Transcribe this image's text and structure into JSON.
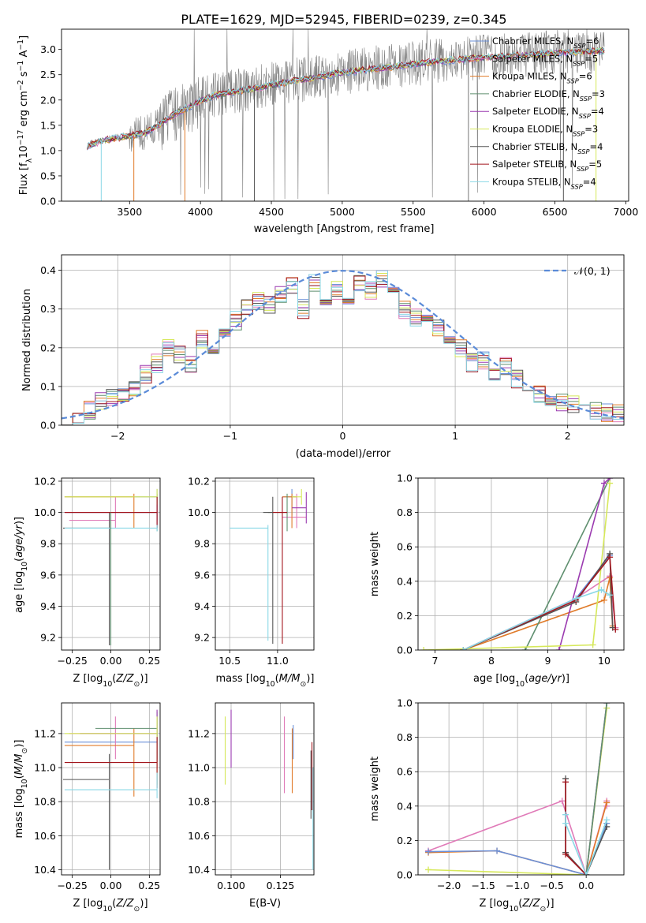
{
  "figure_title": "PLATE=1629, MJD=52945, FIBERID=0239, z=0.345",
  "colors": {
    "Chabrier MILES": "#6a8fd8",
    "Salpeter MILES": "#e07ab8",
    "Kroupa MILES": "#e07b2a",
    "Chabrier ELODIE": "#5f8f6f",
    "Salpeter ELODIE": "#9b3bb0",
    "Kroupa ELODIE": "#d6e85a",
    "Chabrier STELIB": "#555555",
    "Salpeter STELIB": "#a3161e",
    "Kroupa STELIB": "#8ad8e6",
    "gaussian": "#5b8bd8",
    "observed": "#808080"
  },
  "chart_data": [
    {
      "type": "line",
      "title": "PLATE=1629, MJD=52945, FIBERID=0239, z=0.345",
      "xlabel": "wavelength [Angstrom, rest frame]",
      "ylabel": "Flux [f_λ 10^-17 erg cm^-2 s^-1 A^-1]",
      "xlim": [
        3020,
        7020
      ],
      "ylim": [
        0,
        3.4
      ],
      "xticks": [
        3500,
        4000,
        4500,
        5000,
        5500,
        6000,
        6500,
        7000
      ],
      "yticks": [
        0.0,
        0.5,
        1.0,
        1.5,
        2.0,
        2.5,
        3.0
      ],
      "legend_position": "top-right",
      "legend": [
        {
          "name": "Chabrier MILES",
          "label": "Chabrier MILES, N",
          "sub": "SSP",
          "suffix": "=6"
        },
        {
          "name": "Salpeter MILES",
          "label": "Salpeter MILES, N",
          "sub": "SSP",
          "suffix": "=5"
        },
        {
          "name": "Kroupa MILES",
          "label": "Kroupa MILES, N",
          "sub": "SSP",
          "suffix": "=6"
        },
        {
          "name": "Chabrier ELODIE",
          "label": "Chabrier ELODIE, N",
          "sub": "SSP",
          "suffix": "=3"
        },
        {
          "name": "Salpeter ELODIE",
          "label": "Salpeter ELODIE, N",
          "sub": "SSP",
          "suffix": "=4"
        },
        {
          "name": "Kroupa ELODIE",
          "label": "Kroupa ELODIE, N",
          "sub": "SSP",
          "suffix": "=3"
        },
        {
          "name": "Chabrier STELIB",
          "label": "Chabrier STELIB, N",
          "sub": "SSP",
          "suffix": "=4"
        },
        {
          "name": "Salpeter STELIB",
          "label": "Salpeter STELIB, N",
          "sub": "SSP",
          "suffix": "=5"
        },
        {
          "name": "Kroupa STELIB",
          "label": "Kroupa STELIB, N",
          "sub": "SSP",
          "suffix": "=4"
        }
      ],
      "continuum": {
        "x": [
          3200,
          3300,
          3400,
          3500,
          3600,
          3700,
          3800,
          3900,
          4000,
          4100,
          4200,
          4300,
          4400,
          4500,
          4600,
          4700,
          4800,
          4900,
          5000,
          5200,
          5400,
          5600,
          5800,
          6000,
          6200,
          6400,
          6600,
          6800
        ],
        "y": [
          1.1,
          1.2,
          1.25,
          1.3,
          1.35,
          1.5,
          1.7,
          1.85,
          2.0,
          2.1,
          2.15,
          2.2,
          2.25,
          2.3,
          2.35,
          2.4,
          2.45,
          2.5,
          2.55,
          2.62,
          2.68,
          2.75,
          2.8,
          2.85,
          2.88,
          2.92,
          2.95,
          2.98
        ]
      },
      "observed_range": [
        3200,
        6850
      ]
    },
    {
      "type": "step",
      "xlabel": "(data-model)/error",
      "ylabel": "Normed distribution",
      "xlim": [
        -2.5,
        2.5
      ],
      "ylim": [
        0,
        0.44
      ],
      "xticks": [
        -2,
        -1,
        0,
        1,
        2
      ],
      "yticks": [
        0.0,
        0.1,
        0.2,
        0.3,
        0.4
      ],
      "legend": "𝒩(0, 1)",
      "bin_edges_start": -2.5,
      "bin_width": 0.1,
      "base_histogram": [
        0.025,
        0.03,
        0.04,
        0.06,
        0.07,
        0.085,
        0.1,
        0.13,
        0.16,
        0.2,
        0.18,
        0.16,
        0.22,
        0.2,
        0.24,
        0.27,
        0.3,
        0.32,
        0.31,
        0.34,
        0.36,
        0.3,
        0.37,
        0.33,
        0.35,
        0.33,
        0.37,
        0.35,
        0.38,
        0.36,
        0.3,
        0.28,
        0.26,
        0.25,
        0.21,
        0.2,
        0.16,
        0.17,
        0.14,
        0.15,
        0.12,
        0.1,
        0.08,
        0.07,
        0.06,
        0.055,
        0.05,
        0.04,
        0.03,
        0.03
      ]
    },
    {
      "type": "errorbar",
      "xlabel": "Z [log10(Z/Z☉)]",
      "ylabel": "age  [log10(age/yr)]",
      "xlim": [
        -0.32,
        0.32
      ],
      "ylim": [
        9.12,
        10.22
      ],
      "xticks": [
        -0.25,
        0.0,
        0.25
      ],
      "yticks": [
        9.2,
        9.4,
        9.6,
        9.8,
        10.0,
        10.2
      ],
      "points": [
        {
          "s": "Chabrier MILES",
          "x": 0.3,
          "y": 10.1,
          "xerr": [
            0.6,
            0
          ],
          "yerr": [
            0.15,
            0.05
          ]
        },
        {
          "s": "Salpeter MILES",
          "x": 0.03,
          "y": 9.95,
          "xerr": [
            0.3,
            0
          ],
          "yerr": [
            0.05,
            0.15
          ]
        },
        {
          "s": "Kroupa MILES",
          "x": 0.15,
          "y": 10.1,
          "xerr": [
            0.45,
            0
          ],
          "yerr": [
            0.2,
            0.02
          ]
        },
        {
          "s": "Chabrier ELODIE",
          "x": 0.3,
          "y": 10.0,
          "xerr": [
            0.6,
            0
          ],
          "yerr": [
            0.12,
            0.12
          ]
        },
        {
          "s": "Salpeter ELODIE",
          "x": 0.3,
          "y": 10.0,
          "xerr": [
            0.6,
            0
          ],
          "yerr": [
            0.1,
            0.1
          ]
        },
        {
          "s": "Kroupa ELODIE",
          "x": 0.3,
          "y": 10.1,
          "xerr": [
            0.6,
            0
          ],
          "yerr": [
            0.05,
            0.05
          ]
        },
        {
          "s": "Chabrier STELIB",
          "x": -0.01,
          "y": 9.9,
          "xerr": [
            0.3,
            0
          ],
          "yerr": [
            0.75,
            0.1
          ]
        },
        {
          "s": "Salpeter STELIB",
          "x": 0.3,
          "y": 10.0,
          "xerr": [
            0.6,
            0
          ],
          "yerr": [
            0.1,
            0.1
          ]
        },
        {
          "s": "Kroupa STELIB",
          "x": 0.3,
          "y": 9.9,
          "xerr": [
            0.6,
            0
          ],
          "yerr": [
            0.02,
            0.02
          ]
        },
        {
          "s": "Chabrier ELODIE",
          "x": 0.0,
          "y": 9.9,
          "xerr": [
            0,
            0
          ],
          "yerr": [
            0.75,
            0.1
          ]
        }
      ]
    },
    {
      "type": "errorbar",
      "xlabel": "mass [log10(M/M☉)]",
      "ylabel": "",
      "xlim": [
        10.35,
        11.38
      ],
      "ylim": [
        9.12,
        10.22
      ],
      "xticks": [
        10.5,
        11.0
      ],
      "yticks": [
        9.2,
        9.4,
        9.6,
        9.8,
        10.0,
        10.2
      ],
      "points": [
        {
          "s": "Chabrier MILES",
          "x": 11.15,
          "y": 10.1,
          "xerr": [
            0.1,
            0.05
          ],
          "yerr": [
            0.12,
            0.05
          ]
        },
        {
          "s": "Salpeter MILES",
          "x": 11.2,
          "y": 9.97,
          "xerr": [
            0.15,
            0.1
          ],
          "yerr": [
            0.07,
            0.15
          ]
        },
        {
          "s": "Kroupa MILES",
          "x": 11.15,
          "y": 10.1,
          "xerr": [
            0.1,
            0.05
          ],
          "yerr": [
            0.2,
            0.02
          ]
        },
        {
          "s": "Chabrier ELODIE",
          "x": 11.1,
          "y": 10.0,
          "xerr": [
            0.2,
            0
          ],
          "yerr": [
            0.12,
            0.12
          ]
        },
        {
          "s": "Salpeter ELODIE",
          "x": 11.3,
          "y": 10.03,
          "xerr": [
            0.15,
            0
          ],
          "yerr": [
            0.1,
            0.1
          ]
        },
        {
          "s": "Kroupa ELODIE",
          "x": 11.25,
          "y": 10.1,
          "xerr": [
            0.1,
            0
          ],
          "yerr": [
            0.05,
            0.05
          ]
        },
        {
          "s": "Chabrier STELIB",
          "x": 10.95,
          "y": 10.0,
          "xerr": [
            0.1,
            0
          ],
          "yerr": [
            0.84,
            0.1
          ]
        },
        {
          "s": "Salpeter STELIB",
          "x": 11.05,
          "y": 10.0,
          "xerr": [
            0.1,
            0.05
          ],
          "yerr": [
            0.84,
            0.1
          ]
        },
        {
          "s": "Kroupa STELIB",
          "x": 10.9,
          "y": 9.9,
          "xerr": [
            0.4,
            0
          ],
          "yerr": [
            0.72,
            0.02
          ]
        }
      ]
    },
    {
      "type": "line",
      "xlabel": "age  [log10(age/yr)]",
      "ylabel": "mass weight",
      "xlim": [
        6.7,
        10.35
      ],
      "ylim": [
        0,
        1.0
      ],
      "xticks": [
        7,
        8,
        9,
        10
      ],
      "yticks": [
        0.0,
        0.2,
        0.4,
        0.6,
        0.8,
        1.0
      ],
      "series": [
        {
          "s": "Chabrier MILES",
          "x": [
            7.5,
            9.5,
            10.1
          ],
          "y": [
            0.0,
            0.3,
            0.55
          ]
        },
        {
          "s": "Salpeter MILES",
          "x": [
            7.5,
            9.5,
            10.1,
            10.2
          ],
          "y": [
            0.0,
            0.3,
            0.43,
            0.13
          ]
        },
        {
          "s": "Kroupa MILES",
          "x": [
            7.5,
            10.0,
            10.1,
            10.15
          ],
          "y": [
            0.0,
            0.29,
            0.42,
            0.14
          ]
        },
        {
          "s": "Chabrier ELODIE",
          "x": [
            8.6,
            10.1
          ],
          "y": [
            0.0,
            1.0
          ]
        },
        {
          "s": "Salpeter ELODIE",
          "x": [
            9.2,
            10.0,
            10.1
          ],
          "y": [
            0.0,
            0.97,
            1.0
          ]
        },
        {
          "s": "Kroupa ELODIE",
          "x": [
            6.8,
            9.8,
            10.1
          ],
          "y": [
            0.0,
            0.03,
            0.97
          ]
        },
        {
          "s": "Chabrier STELIB",
          "x": [
            7.5,
            9.5,
            10.1,
            10.15
          ],
          "y": [
            0.0,
            0.28,
            0.56,
            0.13
          ]
        },
        {
          "s": "Salpeter STELIB",
          "x": [
            7.5,
            9.5,
            10.1,
            10.2
          ],
          "y": [
            0.0,
            0.29,
            0.54,
            0.12
          ]
        },
        {
          "s": "Kroupa STELIB",
          "x": [
            7.5,
            9.5,
            9.95,
            10.1
          ],
          "y": [
            0.0,
            0.3,
            0.35,
            0.32
          ]
        }
      ]
    },
    {
      "type": "errorbar",
      "xlabel": "Z [log10(Z/Z☉)]",
      "ylabel": "mass [log10(M/M☉)]",
      "xlim": [
        -0.32,
        0.32
      ],
      "ylim": [
        10.37,
        11.38
      ],
      "xticks": [
        -0.25,
        0.0,
        0.25
      ],
      "yticks": [
        10.4,
        10.6,
        10.8,
        11.0,
        11.2
      ],
      "points": [
        {
          "s": "Chabrier MILES",
          "x": 0.3,
          "y": 11.15,
          "xerr": [
            0.6,
            0
          ],
          "yerr": [
            0.1,
            0.15
          ]
        },
        {
          "s": "Salpeter MILES",
          "x": 0.03,
          "y": 11.2,
          "xerr": [
            0.3,
            0
          ],
          "yerr": [
            0.15,
            0.1
          ]
        },
        {
          "s": "Kroupa MILES",
          "x": 0.15,
          "y": 11.13,
          "xerr": [
            0.45,
            0
          ],
          "yerr": [
            0.3,
            0.1
          ]
        },
        {
          "s": "Chabrier ELODIE",
          "x": 0.3,
          "y": 11.23,
          "xerr": [
            0.4,
            0
          ],
          "yerr": [
            0.2,
            0.1
          ]
        },
        {
          "s": "Salpeter ELODIE",
          "x": 0.3,
          "y": 11.2,
          "xerr": [
            0.5,
            0
          ],
          "yerr": [
            0.2,
            0.14
          ]
        },
        {
          "s": "Kroupa ELODIE",
          "x": 0.3,
          "y": 11.2,
          "xerr": [
            0.6,
            0
          ],
          "yerr": [
            0.3,
            0.1
          ]
        },
        {
          "s": "Chabrier STELIB",
          "x": -0.01,
          "y": 10.93,
          "xerr": [
            0.3,
            0
          ],
          "yerr": [
            0.53,
            0.15
          ]
        },
        {
          "s": "Salpeter STELIB",
          "x": 0.3,
          "y": 11.03,
          "xerr": [
            0.6,
            0
          ],
          "yerr": [
            0.15,
            0.15
          ]
        },
        {
          "s": "Kroupa STELIB",
          "x": 0.3,
          "y": 10.87,
          "xerr": [
            0.6,
            0
          ],
          "yerr": [
            0.05,
            0.1
          ]
        }
      ]
    },
    {
      "type": "errorbar",
      "xlabel": "E(B-V)",
      "ylabel": "",
      "xlim": [
        0.092,
        0.142
      ],
      "ylim": [
        10.37,
        11.38
      ],
      "xticks": [
        0.1,
        0.125
      ],
      "yticks": [
        10.4,
        10.6,
        10.8,
        11.0,
        11.2
      ],
      "points": [
        {
          "s": "Kroupa ELODIE",
          "x": 0.097,
          "y": 11.1,
          "xerr": [
            0,
            0
          ],
          "yerr": [
            0.2,
            0.2
          ]
        },
        {
          "s": "Salpeter ELODIE",
          "x": 0.1,
          "y": 11.2,
          "xerr": [
            0,
            0
          ],
          "yerr": [
            0.2,
            0.14
          ]
        },
        {
          "s": "Salpeter MILES",
          "x": 0.127,
          "y": 11.1,
          "xerr": [
            0,
            0
          ],
          "yerr": [
            0.25,
            0.2
          ]
        },
        {
          "s": "Kroupa MILES",
          "x": 0.131,
          "y": 11.05,
          "xerr": [
            0,
            0
          ],
          "yerr": [
            0.2,
            0.18
          ]
        },
        {
          "s": "Chabrier MILES",
          "x": 0.1315,
          "y": 11.15,
          "xerr": [
            0,
            0
          ],
          "yerr": [
            0.1,
            0.1
          ]
        },
        {
          "s": "Salpeter STELIB",
          "x": 0.141,
          "y": 11.05,
          "xerr": [
            0,
            0
          ],
          "yerr": [
            0.3,
            0.1
          ]
        },
        {
          "s": "Kroupa STELIB",
          "x": 0.1415,
          "y": 10.7,
          "xerr": [
            0,
            0
          ],
          "yerr": [
            0.3,
            0.3
          ]
        },
        {
          "s": "Chabrier STELIB",
          "x": 0.1405,
          "y": 10.9,
          "xerr": [
            0,
            0
          ],
          "yerr": [
            0.2,
            0.2
          ]
        }
      ]
    },
    {
      "type": "line",
      "xlabel": "Z [log10(Z/Z☉)]",
      "ylabel": "mass weight",
      "xlim": [
        -2.45,
        0.55
      ],
      "ylim": [
        0,
        1.0
      ],
      "xticks": [
        -2.0,
        -1.5,
        -1.0,
        -0.5,
        0.0
      ],
      "yticks": [
        0.0,
        0.2,
        0.4,
        0.6,
        0.8,
        1.0
      ],
      "series": [
        {
          "s": "Salpeter MILES",
          "x": [
            -2.3,
            -0.35,
            0.0,
            0.3,
            0.3
          ],
          "y": [
            0.14,
            0.43,
            0.0,
            0.43,
            0.4
          ]
        },
        {
          "s": "Kroupa MILES",
          "x": [
            -2.3,
            -1.3,
            0.0,
            0.3
          ],
          "y": [
            0.13,
            0.14,
            0.0,
            0.42
          ]
        },
        {
          "s": "Chabrier MILES",
          "x": [
            -2.3,
            -1.3,
            0.0,
            0.3
          ],
          "y": [
            0.135,
            0.14,
            0.0,
            0.3
          ]
        },
        {
          "s": "Kroupa ELODIE",
          "x": [
            -2.3,
            0.0,
            0.3
          ],
          "y": [
            0.03,
            0.0,
            0.97
          ]
        },
        {
          "s": "Salpeter ELODIE",
          "x": [
            0.0,
            0.3
          ],
          "y": [
            0.0,
            1.0
          ]
        },
        {
          "s": "Chabrier ELODIE",
          "x": [
            0.0,
            0.3
          ],
          "y": [
            0.0,
            1.0
          ]
        },
        {
          "s": "Chabrier STELIB",
          "x": [
            -0.3,
            -0.3,
            0.0,
            0.3
          ],
          "y": [
            0.56,
            0.13,
            0.0,
            0.28
          ]
        },
        {
          "s": "Salpeter STELIB",
          "x": [
            -0.3,
            -0.3,
            0.0
          ],
          "y": [
            0.54,
            0.12,
            0.0
          ]
        },
        {
          "s": "Kroupa STELIB",
          "x": [
            -0.3,
            -0.3,
            0.0,
            0.3
          ],
          "y": [
            0.35,
            0.3,
            0.0,
            0.32
          ]
        }
      ]
    }
  ]
}
